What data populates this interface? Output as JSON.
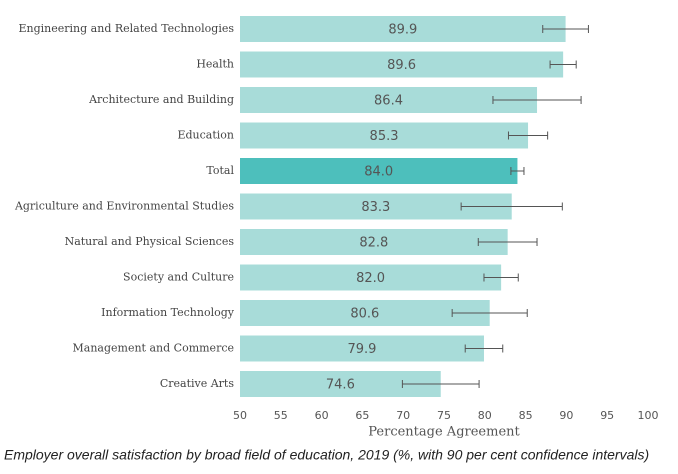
{
  "chart_data": {
    "type": "bar",
    "orientation": "horizontal",
    "caption": "Employer overall satisfaction by broad field of education, 2019 (%, with 90 per cent confidence intervals)",
    "xlabel": "Percentage Agreement",
    "categories": [
      "Engineering and Related Technologies",
      "Health",
      "Architecture and Building",
      "Education",
      "Total",
      "Agriculture and Environmental Studies",
      "Natural and Physical Sciences",
      "Society and Culture",
      "Information Technology",
      "Management and Commerce",
      "Creative Arts"
    ],
    "values": [
      89.9,
      89.6,
      86.4,
      85.3,
      84.0,
      83.3,
      82.8,
      82.0,
      80.6,
      79.9,
      74.6
    ],
    "value_labels": [
      "89.9",
      "89.6",
      "86.4",
      "85.3",
      "84.0",
      "83.3",
      "82.8",
      "82.0",
      "80.6",
      "79.9",
      "74.6"
    ],
    "errors": [
      2.8,
      1.6,
      5.4,
      2.4,
      0.8,
      6.2,
      3.6,
      2.1,
      4.6,
      2.3,
      4.7
    ],
    "colors": [
      "#a8dcd9",
      "#a8dcd9",
      "#a8dcd9",
      "#a8dcd9",
      "#4dbfbc",
      "#a8dcd9",
      "#a8dcd9",
      "#a8dcd9",
      "#a8dcd9",
      "#a8dcd9",
      "#a8dcd9"
    ],
    "error_color": "#555555",
    "xlim": [
      50,
      100
    ],
    "xticks": [
      50,
      55,
      60,
      65,
      70,
      75,
      80,
      85,
      90,
      95,
      100
    ]
  }
}
